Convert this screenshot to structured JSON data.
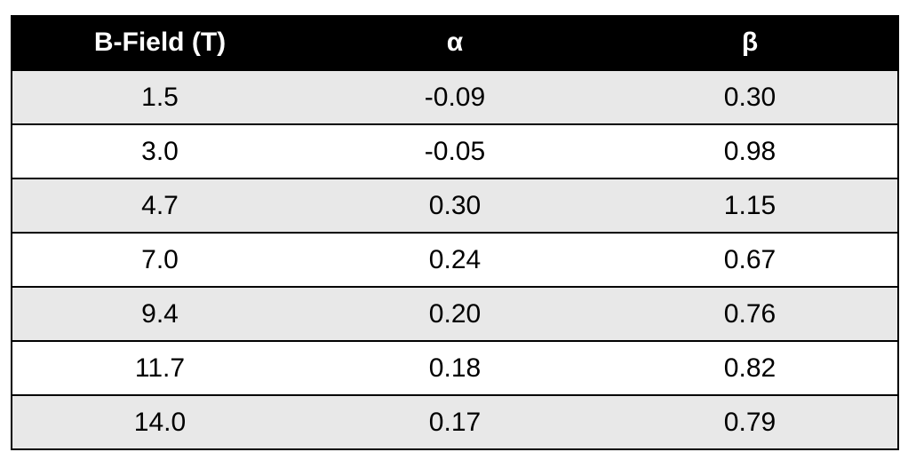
{
  "table": {
    "header": [
      "B-Field (T)",
      "α",
      "β"
    ],
    "rows": [
      [
        "1.5",
        "-0.09",
        "0.30"
      ],
      [
        "3.0",
        "-0.05",
        "0.98"
      ],
      [
        "4.7",
        "0.30",
        "1.15"
      ],
      [
        "7.0",
        "0.24",
        "0.67"
      ],
      [
        "9.4",
        "0.20",
        "0.76"
      ],
      [
        "11.7",
        "0.18",
        "0.82"
      ],
      [
        "14.0",
        "0.17",
        "0.79"
      ]
    ]
  }
}
